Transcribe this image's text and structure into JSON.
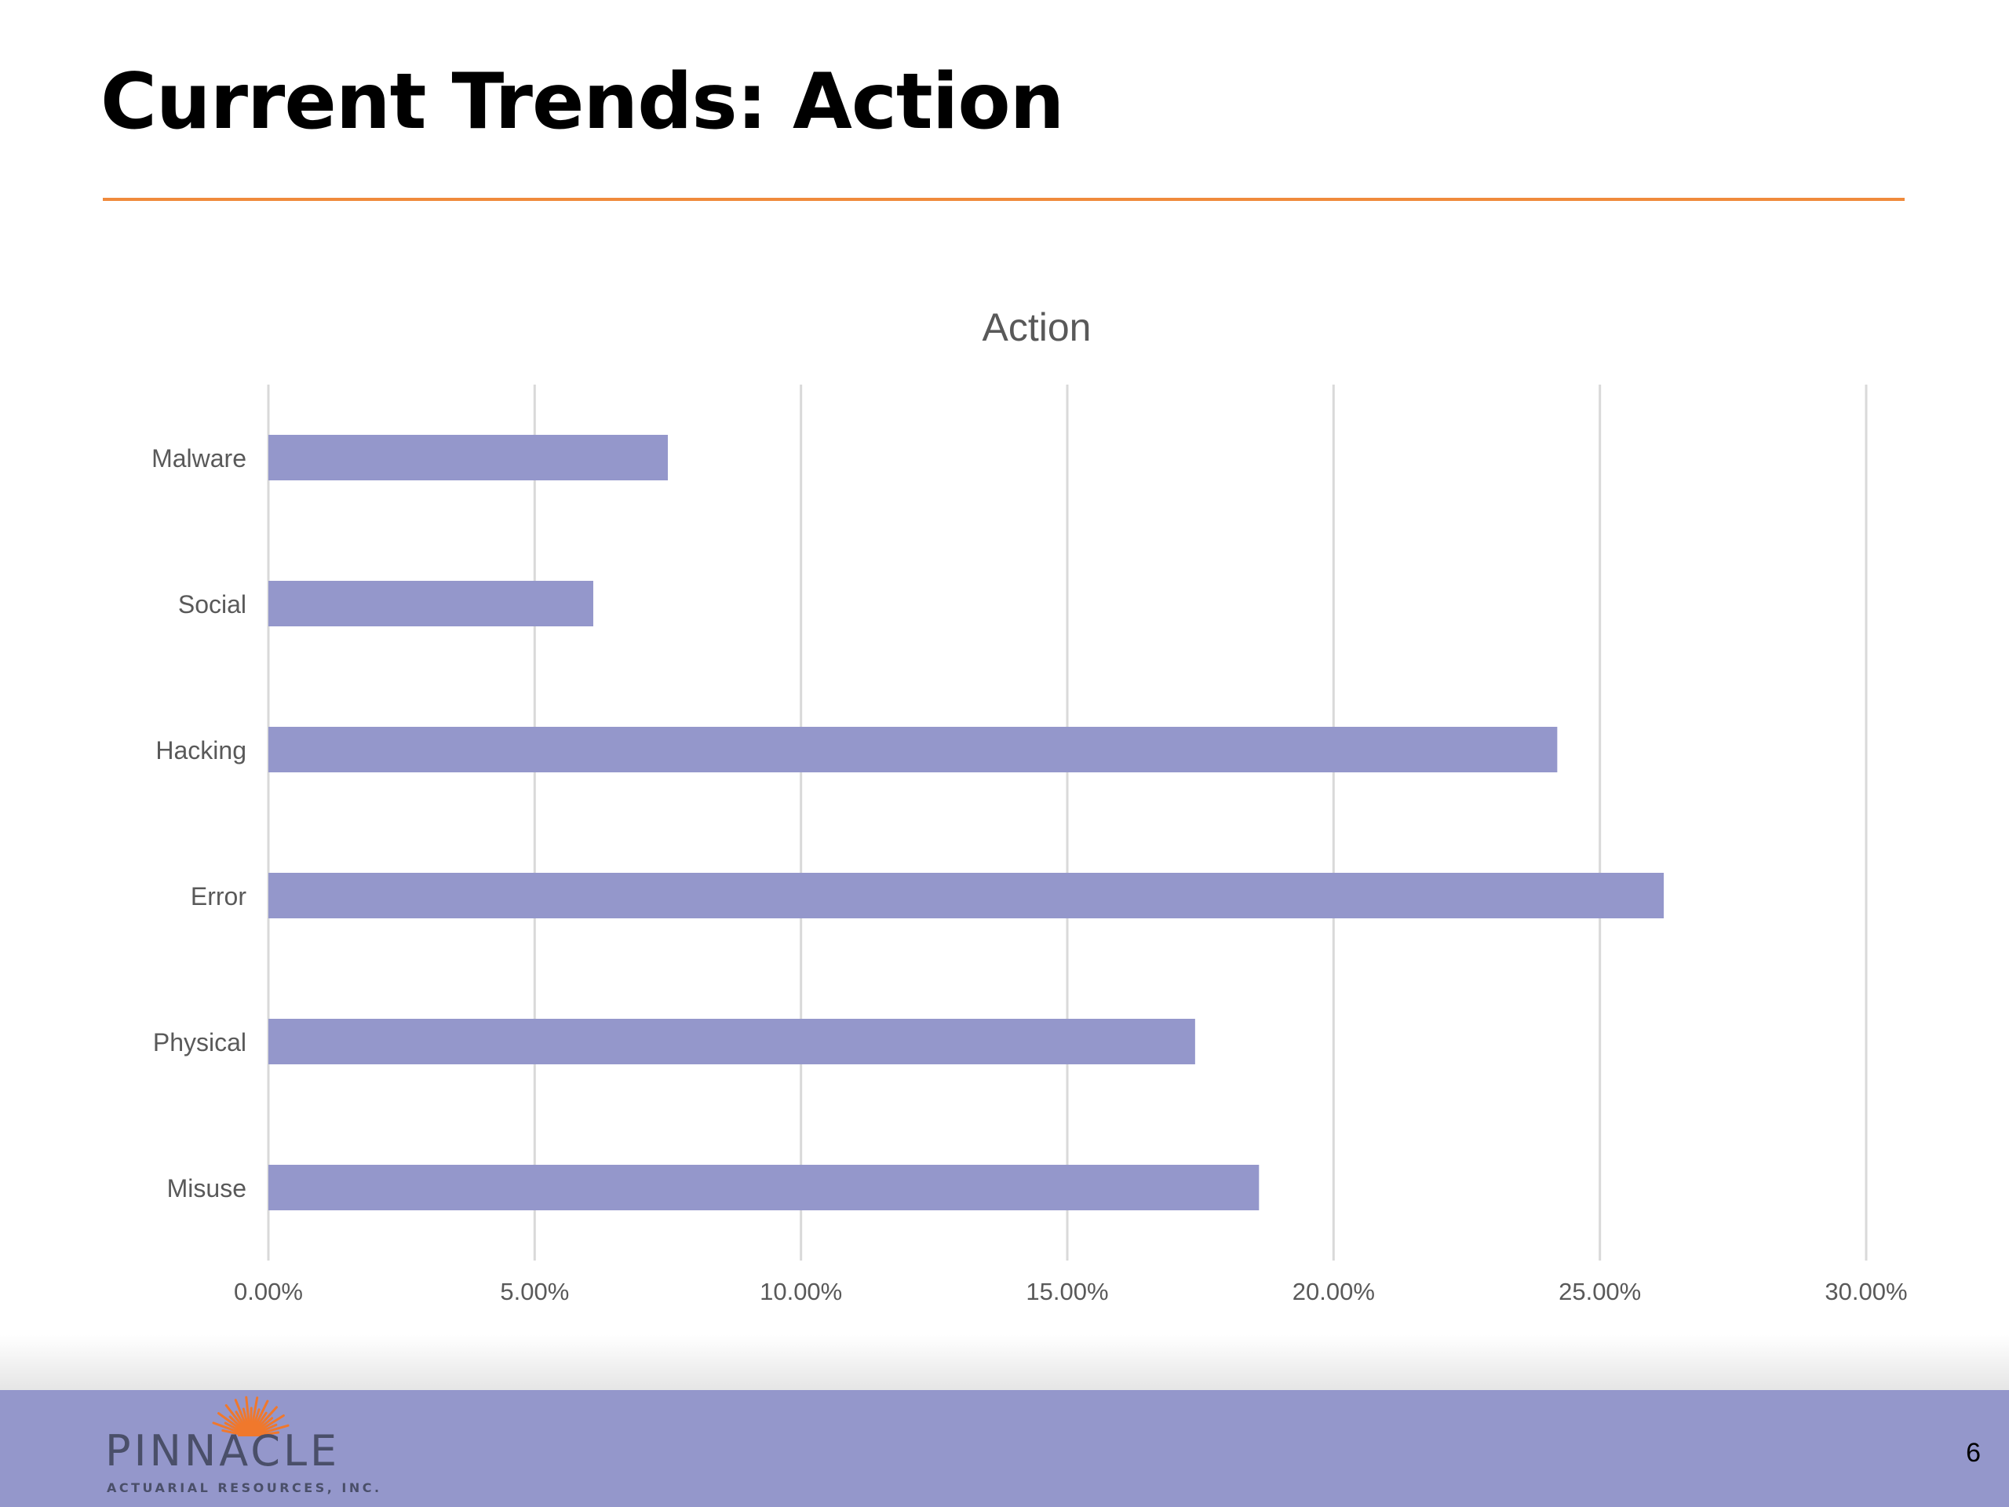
{
  "slide": {
    "title": "Current Trends: Action",
    "page_number": "6"
  },
  "logo": {
    "wordmark": "PINNACLE",
    "tagline": "ACTUARIAL RESOURCES, INC."
  },
  "colors": {
    "accent_rule": "#f08a3c",
    "bar": "#9497cb",
    "footer": "#9497cb",
    "gridline": "#d9d9d9",
    "axis_text": "#595959"
  },
  "chart_data": {
    "type": "bar",
    "orientation": "horizontal",
    "title": "Action",
    "categories": [
      "Malware",
      "Social",
      "Hacking",
      "Error",
      "Physical",
      "Misuse"
    ],
    "values": [
      7.5,
      6.1,
      24.2,
      26.2,
      17.4,
      18.6
    ],
    "xlabel": "",
    "ylabel": "",
    "xlim": [
      0,
      30
    ],
    "xticks": [
      "0.00%",
      "5.00%",
      "10.00%",
      "15.00%",
      "20.00%",
      "25.00%",
      "30.00%"
    ],
    "grid": true,
    "legend": "none"
  }
}
